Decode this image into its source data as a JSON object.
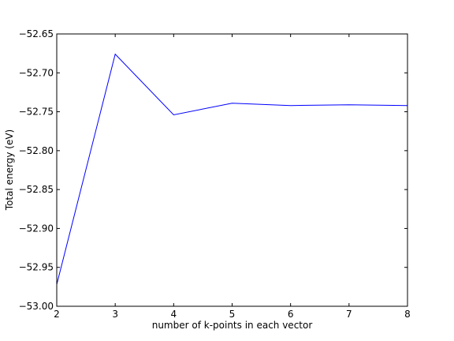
{
  "chart_data": {
    "type": "line",
    "title": "",
    "xlabel": "number of k-points in each vector",
    "ylabel": "Total energy (eV)",
    "xlim": [
      2,
      8
    ],
    "ylim": [
      -53.0,
      -52.65
    ],
    "xticks": [
      2,
      3,
      4,
      5,
      6,
      7,
      8
    ],
    "xtick_labels": [
      "2",
      "3",
      "4",
      "5",
      "6",
      "7",
      "8"
    ],
    "yticks": [
      -53.0,
      -52.95,
      -52.9,
      -52.85,
      -52.8,
      -52.75,
      -52.7,
      -52.65
    ],
    "ytick_labels": [
      "−53.00",
      "−52.95",
      "−52.90",
      "−52.85",
      "−52.80",
      "−52.75",
      "−52.70",
      "−52.65"
    ],
    "grid": false,
    "legend": "none",
    "series": [
      {
        "color": "#0000ff",
        "x": [
          2,
          3,
          4,
          5,
          6,
          7,
          8
        ],
        "values": [
          -52.972,
          -52.676,
          -52.754,
          -52.739,
          -52.742,
          -52.741,
          -52.742
        ]
      }
    ]
  }
}
